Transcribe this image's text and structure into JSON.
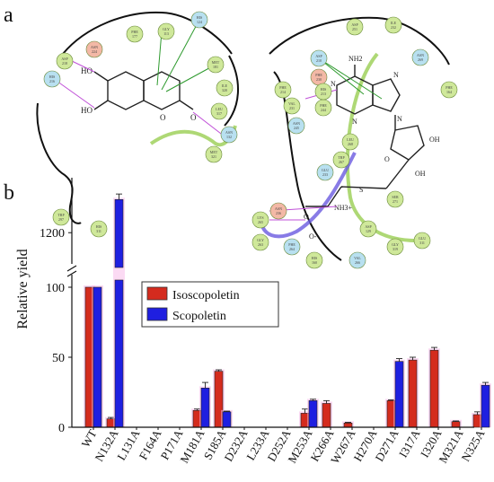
{
  "figure": {
    "panel_a_label": "a",
    "panel_b_label": "b"
  },
  "diagram": {
    "left_residues": [
      {
        "code": "ASP",
        "num": "218"
      },
      {
        "code": "HIS",
        "num": "216"
      },
      {
        "code": "ASN",
        "num": "224"
      },
      {
        "code": "PHE",
        "num": "177"
      },
      {
        "code": "GLY",
        "num": "113"
      },
      {
        "code": "HIS",
        "num": "124"
      },
      {
        "code": "MET",
        "num": "181"
      },
      {
        "code": "ILE",
        "num": "320"
      },
      {
        "code": "LEU",
        "num": "317"
      },
      {
        "code": "ASN",
        "num": "132"
      },
      {
        "code": "MET",
        "num": "321"
      },
      {
        "code": "TRP",
        "num": "297"
      },
      {
        "code": "HIS",
        "num": "311"
      }
    ],
    "right_residues": [
      {
        "code": "PHE",
        "num": "214"
      },
      {
        "code": "ASP",
        "num": "210"
      },
      {
        "code": "PHE",
        "num": "230"
      },
      {
        "code": "VAL",
        "num": "231"
      },
      {
        "code": "PHE",
        "num": "244"
      },
      {
        "code": "ASN",
        "num": "245"
      },
      {
        "code": "HIS",
        "num": "213"
      },
      {
        "code": "ASP",
        "num": "251"
      },
      {
        "code": "ILE",
        "num": "232"
      },
      {
        "code": "ASN",
        "num": "269"
      },
      {
        "code": "SER",
        "num": "271"
      },
      {
        "code": "PHE",
        "num": "164"
      },
      {
        "code": "LEU",
        "num": "268"
      },
      {
        "code": "TRP",
        "num": "267"
      },
      {
        "code": "GLU",
        "num": "233"
      },
      {
        "code": "ASN",
        "num": "236"
      },
      {
        "code": "LYS",
        "num": "265"
      },
      {
        "code": "GLY",
        "num": "263"
      },
      {
        "code": "PHE",
        "num": "264"
      },
      {
        "code": "HIS",
        "num": "160"
      },
      {
        "code": "GLU",
        "num": "311"
      },
      {
        "code": "GLY",
        "num": "319"
      },
      {
        "code": "VAL",
        "num": "266"
      },
      {
        "code": "ASP",
        "num": "129"
      }
    ],
    "left_ligand_labels": [
      "HO",
      "HO",
      "O",
      "O"
    ],
    "right_ligand_labels": [
      "NH2",
      "N",
      "N",
      "N",
      "N",
      "O",
      "OH",
      "OH",
      "S",
      "NH3+",
      "O",
      "O-"
    ]
  },
  "colors": {
    "isoscopoletin": "#d42b1e",
    "scopoletin": "#1f1fe0",
    "highlight": "#f7b6e8",
    "hbond": "#c050d8",
    "stacking": "#2e9a2e"
  },
  "chart_data": {
    "type": "bar",
    "ylabel": "Relative yield",
    "categories": [
      "WT",
      "N132A",
      "L131A",
      "F164A",
      "P171A",
      "M181A",
      "S185A",
      "D232A",
      "L233A",
      "D252A",
      "M253A",
      "K266A",
      "W267A",
      "H270A",
      "D271A",
      "I317A",
      "I320A",
      "M321A",
      "N325A"
    ],
    "series": [
      {
        "name": "Isoscopoletin",
        "values": [
          100,
          6,
          0,
          0,
          0,
          12,
          40,
          0,
          0,
          0,
          10,
          17,
          3,
          0,
          19,
          48,
          55,
          4,
          9
        ],
        "errors": [
          0,
          1,
          0,
          0,
          0,
          1,
          1,
          0,
          0,
          0,
          3,
          2,
          0.5,
          0,
          0.5,
          2,
          2,
          0.5,
          2
        ]
      },
      {
        "name": "Scopoletin",
        "values": [
          100,
          1320,
          0,
          0,
          0,
          28,
          11,
          0,
          0,
          0,
          19,
          0,
          0,
          0,
          47,
          0,
          0,
          0,
          30
        ],
        "errors": [
          0,
          20,
          0,
          0,
          0,
          4,
          0.5,
          0,
          0,
          0,
          1,
          0,
          0,
          0,
          2,
          0,
          0,
          0,
          2
        ]
      }
    ],
    "yticks_lower": [
      0,
      50,
      100
    ],
    "yticks_upper": [
      1200
    ],
    "ylim_lower": [
      0,
      120
    ],
    "ylim_upper": [
      1100,
      1360
    ],
    "axis_break": true,
    "legend": "inside top-center",
    "grid": false
  }
}
